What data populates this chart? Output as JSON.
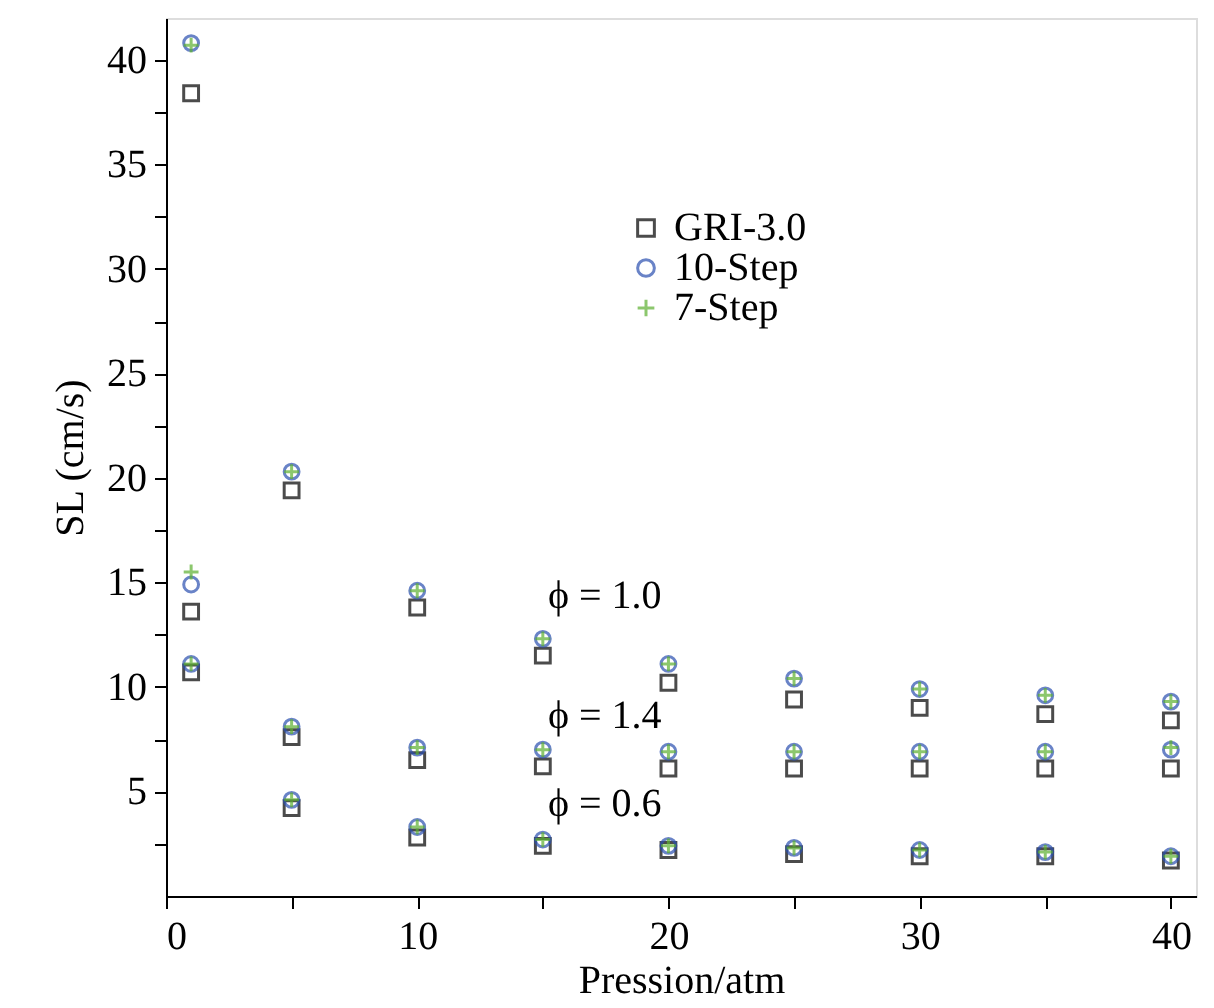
{
  "chart_data": {
    "type": "scatter",
    "xlabel": "Pression/atm",
    "ylabel": "SL (cm/s)",
    "x": [
      1,
      5,
      10,
      15,
      20,
      25,
      30,
      35,
      40,
      1,
      5,
      10,
      15,
      20,
      25,
      30,
      35,
      40,
      1,
      5,
      10,
      15,
      20,
      25,
      30,
      35,
      40
    ],
    "series": [
      {
        "name": "GRI-3.0",
        "color": "#000000",
        "marker": "square",
        "values": [
          38.4,
          19.4,
          13.8,
          11.5,
          10.2,
          9.4,
          9.0,
          8.7,
          8.4,
          13.6,
          7.6,
          6.5,
          6.2,
          6.1,
          6.1,
          6.1,
          6.1,
          6.1,
          10.7,
          4.2,
          2.8,
          2.4,
          2.2,
          2.0,
          1.9,
          1.9,
          1.7
        ]
      },
      {
        "name": "10-Step",
        "color": "#2a4fb0",
        "marker": "circle",
        "values": [
          40.8,
          20.3,
          14.6,
          12.3,
          11.1,
          10.4,
          9.9,
          9.6,
          9.3,
          14.9,
          8.1,
          7.1,
          7.0,
          6.9,
          6.9,
          6.9,
          6.9,
          7.0,
          11.1,
          4.6,
          3.3,
          2.7,
          2.4,
          2.3,
          2.2,
          2.1,
          1.9
        ]
      },
      {
        "name": "7-Step",
        "color": "#5cb030",
        "marker": "cross",
        "values": [
          40.7,
          20.3,
          14.6,
          12.3,
          11.1,
          10.4,
          9.9,
          9.6,
          9.3,
          15.5,
          8.1,
          7.1,
          7.0,
          6.9,
          6.9,
          6.9,
          6.9,
          7.1,
          11.1,
          4.6,
          3.3,
          2.7,
          2.4,
          2.3,
          2.2,
          2.1,
          1.9
        ]
      }
    ],
    "xlim": [
      0,
      41
    ],
    "ylim": [
      0,
      42
    ],
    "xticks": [
      0,
      {
        "value": 5,
        "label": null
      },
      10,
      {
        "value": 15,
        "label": null
      },
      20,
      {
        "value": 25,
        "label": null
      },
      30,
      {
        "value": 35,
        "label": null
      },
      40
    ],
    "yticks": [
      {
        "value": 2.5,
        "label": null
      },
      5,
      {
        "value": 7.5,
        "label": null
      },
      10,
      {
        "value": 12.5,
        "label": null
      },
      15,
      {
        "value": 17.5,
        "label": null
      },
      20,
      {
        "value": 22.5,
        "label": null
      },
      25,
      {
        "value": 27.5,
        "label": null
      },
      30,
      {
        "value": 32.5,
        "label": null
      },
      35,
      {
        "value": 37.5,
        "label": null
      },
      40
    ],
    "annotations": [
      "ϕ = 1.0",
      "ϕ = 1.4",
      "ϕ = 0.6"
    ],
    "legend": "top",
    "grid": false
  }
}
